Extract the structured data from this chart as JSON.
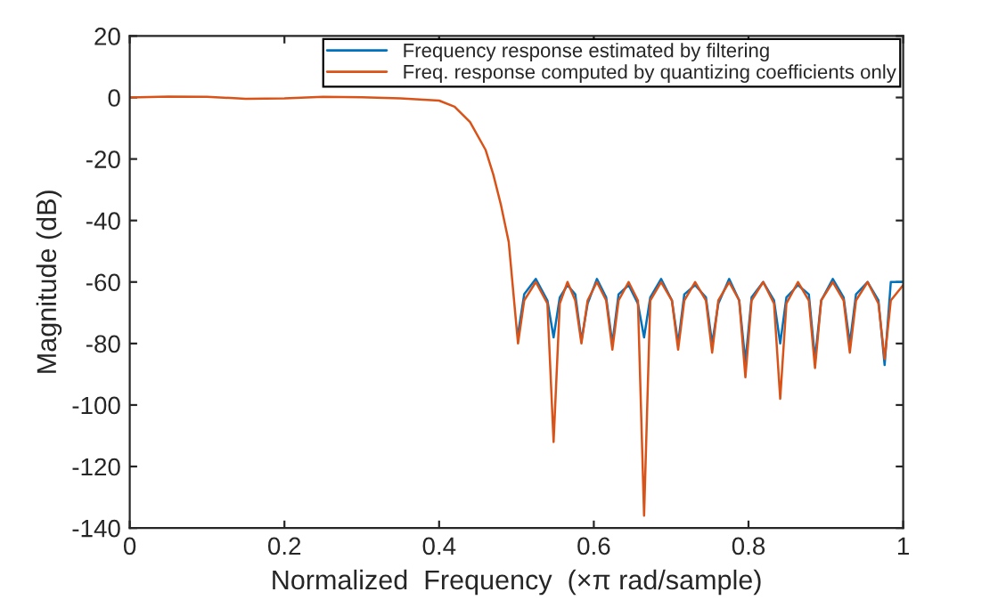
{
  "chart_data": {
    "type": "line",
    "xlabel": "Normalized  Frequency  (×π rad/sample)",
    "ylabel": "Magnitude (dB)",
    "x": [
      0,
      0.05,
      0.1,
      0.15,
      0.2,
      0.25,
      0.3,
      0.35,
      0.4,
      0.42,
      0.44,
      0.46,
      0.47,
      0.48,
      0.49,
      0.502,
      0.51,
      0.525,
      0.54,
      0.548,
      0.556,
      0.566,
      0.576,
      0.584,
      0.592,
      0.604,
      0.616,
      0.624,
      0.632,
      0.645,
      0.657,
      0.665,
      0.673,
      0.687,
      0.701,
      0.709,
      0.717,
      0.731,
      0.745,
      0.753,
      0.761,
      0.775,
      0.788,
      0.796,
      0.804,
      0.819,
      0.833,
      0.841,
      0.849,
      0.864,
      0.878,
      0.886,
      0.894,
      0.909,
      0.923,
      0.931,
      0.939,
      0.954,
      0.968,
      0.976,
      0.984,
      1.0
    ],
    "series": [
      {
        "name": "Frequency response estimated by filtering",
        "color": "#0072bd",
        "values": [
          null,
          null,
          null,
          null,
          null,
          null,
          null,
          null,
          null,
          null,
          null,
          null,
          null,
          null,
          null,
          -77,
          -64,
          -59,
          -66,
          -78,
          -65,
          -61,
          -64,
          -79,
          -67,
          -59,
          -65,
          -80,
          -64,
          -61,
          -67,
          -78,
          -65,
          -59,
          -66,
          -80,
          -64,
          -61,
          -65,
          -80,
          -67,
          -59,
          -66,
          -86,
          -65,
          -60,
          -66,
          -80,
          -65,
          -61,
          -64,
          -85,
          -66,
          -59,
          -65,
          -80,
          -64,
          -60,
          -66,
          -87,
          -60,
          -60
        ]
      },
      {
        "name": "Freq. response computed by quantizing coefficients only",
        "color": "#d95319",
        "values": [
          0,
          0.3,
          0.2,
          -0.4,
          -0.3,
          0.2,
          0.1,
          -0.3,
          -1,
          -3,
          -8,
          -17,
          -25,
          -35,
          -47,
          -80,
          -66,
          -60,
          -67,
          -112,
          -67,
          -60,
          -66,
          -80,
          -66,
          -60,
          -66,
          -82,
          -66,
          -60,
          -66,
          -136,
          -66,
          -60,
          -66,
          -82,
          -66,
          -60,
          -66,
          -83,
          -66,
          -60,
          -66,
          -91,
          -66,
          -60,
          -67,
          -98,
          -67,
          -60,
          -66,
          -88,
          -66,
          -60,
          -66,
          -83,
          -66,
          -60,
          -67,
          -85,
          -66,
          -61
        ]
      }
    ],
    "xlim": [
      0,
      1
    ],
    "xticks": [
      0,
      {
        "value": 0.2,
        "label": "0.2"
      },
      {
        "value": 0.4,
        "label": "0.4"
      },
      {
        "value": 0.6,
        "label": "0.6"
      },
      {
        "value": 0.8,
        "label": "0.8"
      },
      1
    ],
    "ylim": [
      -140,
      20
    ],
    "yticks": [
      -140,
      -120,
      -100,
      -80,
      -60,
      -40,
      -20,
      0,
      20
    ],
    "legend": "top right",
    "grid": false
  }
}
